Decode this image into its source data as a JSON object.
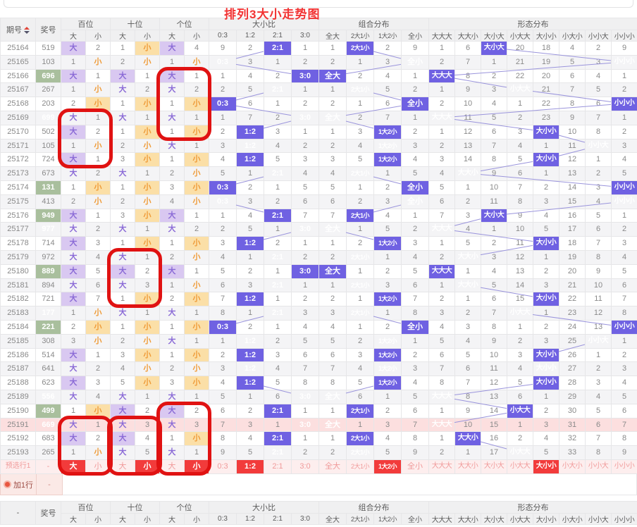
{
  "title": "排列3大小走势图",
  "columns": {
    "period": "期号",
    "prize": "奖号",
    "groups": [
      {
        "label": "百位",
        "subs": [
          "大",
          "小"
        ]
      },
      {
        "label": "十位",
        "subs": [
          "大",
          "小"
        ]
      },
      {
        "label": "个位",
        "subs": [
          "大",
          "小"
        ]
      },
      {
        "label": "大小比",
        "subs": [
          "0:3",
          "1:2",
          "2:1",
          "3:0"
        ]
      },
      {
        "label": "组合分布",
        "subs": [
          "全大",
          "2大1小",
          "1大2小",
          "全小"
        ]
      },
      {
        "label": "形态分布",
        "subs": [
          "大大大",
          "大大小",
          "大小大",
          "小大大",
          "大小小",
          "小大小",
          "小小大",
          "小小小"
        ]
      }
    ]
  },
  "rows": [
    {
      "period": "25164",
      "prize": "519",
      "prize_hl": false,
      "pink": false,
      "cells": [
        "大",
        "2",
        "1",
        "小",
        "大",
        "4",
        "9",
        "2",
        "2:1",
        "1",
        "1",
        "2大1小",
        "2",
        "9",
        "1",
        "6",
        "大小大",
        "20",
        "18",
        "4",
        "2",
        "9"
      ]
    },
    {
      "period": "25165",
      "prize": "103",
      "prize_hl": false,
      "pink": false,
      "cells": [
        "1",
        "小",
        "2",
        "小",
        "1",
        "小",
        "0:3",
        "3",
        "1",
        "2",
        "2",
        "1",
        "3",
        "全小",
        "2",
        "7",
        "1",
        "21",
        "19",
        "5",
        "3",
        "小小小"
      ]
    },
    {
      "period": "25166",
      "prize": "696",
      "prize_hl": true,
      "pink": false,
      "cells": [
        "大",
        "1",
        "大",
        "1",
        "大",
        "1",
        "1",
        "4",
        "2",
        "3:0",
        "全大",
        "2",
        "4",
        "1",
        "大大大",
        "8",
        "2",
        "22",
        "20",
        "6",
        "4",
        "1"
      ]
    },
    {
      "period": "25167",
      "prize": "267",
      "prize_hl": false,
      "pink": false,
      "cells": [
        "1",
        "小",
        "大",
        "2",
        "大",
        "2",
        "2",
        "5",
        "2:1",
        "1",
        "1",
        "2大1小",
        "5",
        "2",
        "1",
        "9",
        "3",
        "小大大",
        "21",
        "7",
        "5",
        "2"
      ]
    },
    {
      "period": "25168",
      "prize": "203",
      "prize_hl": false,
      "pink": false,
      "cells": [
        "2",
        "小",
        "1",
        "小",
        "1",
        "小",
        "0:3",
        "6",
        "1",
        "2",
        "2",
        "1",
        "6",
        "全小",
        "2",
        "10",
        "4",
        "1",
        "22",
        "8",
        "6",
        "小小小"
      ]
    },
    {
      "period": "25169",
      "prize": "699",
      "prize_hl": true,
      "pink": false,
      "cells": [
        "大",
        "1",
        "大",
        "1",
        "大",
        "1",
        "1",
        "7",
        "2",
        "3:0",
        "全大",
        "2",
        "7",
        "1",
        "大大大",
        "11",
        "5",
        "2",
        "23",
        "9",
        "7",
        "1"
      ]
    },
    {
      "period": "25170",
      "prize": "502",
      "prize_hl": false,
      "pink": false,
      "cells": [
        "大",
        "2",
        "1",
        "小",
        "1",
        "小",
        "2",
        "1:2",
        "3",
        "1",
        "1",
        "3",
        "1大2小",
        "2",
        "1",
        "12",
        "6",
        "3",
        "大小小",
        "10",
        "8",
        "2"
      ]
    },
    {
      "period": "25171",
      "prize": "105",
      "prize_hl": false,
      "pink": false,
      "cells": [
        "1",
        "小",
        "2",
        "小",
        "大",
        "1",
        "3",
        "1:2",
        "4",
        "2",
        "2",
        "4",
        "1大2小",
        "3",
        "2",
        "13",
        "7",
        "4",
        "1",
        "11",
        "小小大",
        "3"
      ]
    },
    {
      "period": "25172",
      "prize": "724",
      "prize_hl": false,
      "pink": false,
      "cells": [
        "大",
        "1",
        "3",
        "小",
        "1",
        "小",
        "4",
        "1:2",
        "5",
        "3",
        "3",
        "5",
        "1大2小",
        "4",
        "3",
        "14",
        "8",
        "5",
        "大小小",
        "12",
        "1",
        "4"
      ]
    },
    {
      "period": "25173",
      "prize": "673",
      "prize_hl": false,
      "pink": false,
      "cells": [
        "大",
        "2",
        "大",
        "1",
        "2",
        "小",
        "5",
        "1",
        "2:1",
        "4",
        "4",
        "2大1小",
        "1",
        "5",
        "4",
        "大大小",
        "9",
        "6",
        "1",
        "13",
        "2",
        "5"
      ]
    },
    {
      "period": "25174",
      "prize": "131",
      "prize_hl": true,
      "pink": false,
      "cells": [
        "1",
        "小",
        "1",
        "小",
        "3",
        "小",
        "0:3",
        "2",
        "1",
        "5",
        "5",
        "1",
        "2",
        "全小",
        "5",
        "1",
        "10",
        "7",
        "2",
        "14",
        "3",
        "小小小"
      ]
    },
    {
      "period": "25175",
      "prize": "413",
      "prize_hl": false,
      "pink": false,
      "cells": [
        "2",
        "小",
        "2",
        "小",
        "4",
        "小",
        "0:3",
        "3",
        "2",
        "6",
        "6",
        "2",
        "3",
        "全小",
        "6",
        "2",
        "11",
        "8",
        "3",
        "15",
        "4",
        "小小小"
      ]
    },
    {
      "period": "25176",
      "prize": "949",
      "prize_hl": true,
      "pink": false,
      "cells": [
        "大",
        "1",
        "3",
        "小",
        "大",
        "1",
        "1",
        "4",
        "2:1",
        "7",
        "7",
        "2大1小",
        "4",
        "1",
        "7",
        "3",
        "大小大",
        "9",
        "4",
        "16",
        "5",
        "1"
      ]
    },
    {
      "period": "25177",
      "prize": "977",
      "prize_hl": true,
      "pink": false,
      "cells": [
        "大",
        "2",
        "大",
        "1",
        "大",
        "2",
        "2",
        "5",
        "1",
        "3:0",
        "全大",
        "1",
        "5",
        "2",
        "大大大",
        "4",
        "1",
        "10",
        "5",
        "17",
        "6",
        "2"
      ]
    },
    {
      "period": "25178",
      "prize": "714",
      "prize_hl": false,
      "pink": false,
      "cells": [
        "大",
        "3",
        "1",
        "小",
        "1",
        "小",
        "3",
        "1:2",
        "2",
        "1",
        "1",
        "2",
        "1大2小",
        "3",
        "1",
        "5",
        "2",
        "11",
        "大小小",
        "18",
        "7",
        "3"
      ]
    },
    {
      "period": "25179",
      "prize": "972",
      "prize_hl": false,
      "pink": false,
      "cells": [
        "大",
        "4",
        "大",
        "1",
        "2",
        "小",
        "4",
        "1",
        "2:1",
        "2",
        "2",
        "2大1小",
        "1",
        "4",
        "2",
        "大大小",
        "3",
        "12",
        "1",
        "19",
        "8",
        "4"
      ]
    },
    {
      "period": "25180",
      "prize": "889",
      "prize_hl": true,
      "pink": false,
      "cells": [
        "大",
        "5",
        "大",
        "2",
        "大",
        "1",
        "5",
        "2",
        "1",
        "3:0",
        "全大",
        "1",
        "2",
        "5",
        "大大大",
        "1",
        "4",
        "13",
        "2",
        "20",
        "9",
        "5"
      ]
    },
    {
      "period": "25181",
      "prize": "894",
      "prize_hl": false,
      "pink": false,
      "cells": [
        "大",
        "6",
        "大",
        "3",
        "1",
        "小",
        "6",
        "3",
        "2:1",
        "1",
        "1",
        "2大1小",
        "3",
        "6",
        "1",
        "大大小",
        "5",
        "14",
        "3",
        "21",
        "10",
        "6"
      ]
    },
    {
      "period": "25182",
      "prize": "721",
      "prize_hl": false,
      "pink": false,
      "cells": [
        "大",
        "7",
        "1",
        "小",
        "2",
        "小",
        "7",
        "1:2",
        "1",
        "2",
        "2",
        "1",
        "1大2小",
        "7",
        "2",
        "1",
        "6",
        "15",
        "大小小",
        "22",
        "11",
        "7"
      ]
    },
    {
      "period": "25183",
      "prize": "177",
      "prize_hl": true,
      "pink": false,
      "cells": [
        "1",
        "小",
        "大",
        "1",
        "大",
        "1",
        "8",
        "1",
        "2:1",
        "3",
        "3",
        "2大1小",
        "1",
        "8",
        "3",
        "2",
        "7",
        "小大大",
        "1",
        "23",
        "12",
        "8"
      ]
    },
    {
      "period": "25184",
      "prize": "221",
      "prize_hl": true,
      "pink": false,
      "cells": [
        "2",
        "小",
        "1",
        "小",
        "1",
        "小",
        "0:3",
        "2",
        "1",
        "4",
        "4",
        "1",
        "2",
        "全小",
        "4",
        "3",
        "8",
        "1",
        "2",
        "24",
        "13",
        "小小小"
      ]
    },
    {
      "period": "25185",
      "prize": "308",
      "prize_hl": false,
      "pink": false,
      "cells": [
        "3",
        "小",
        "2",
        "小",
        "大",
        "1",
        "1",
        "1:2",
        "2",
        "5",
        "5",
        "2",
        "1大2小",
        "1",
        "5",
        "4",
        "9",
        "2",
        "3",
        "25",
        "小小大",
        "1"
      ]
    },
    {
      "period": "25186",
      "prize": "514",
      "prize_hl": false,
      "pink": false,
      "cells": [
        "大",
        "1",
        "3",
        "小",
        "1",
        "小",
        "2",
        "1:2",
        "3",
        "6",
        "6",
        "3",
        "1大2小",
        "2",
        "6",
        "5",
        "10",
        "3",
        "大小小",
        "26",
        "1",
        "2"
      ]
    },
    {
      "period": "25187",
      "prize": "641",
      "prize_hl": false,
      "pink": false,
      "cells": [
        "大",
        "2",
        "4",
        "小",
        "2",
        "小",
        "3",
        "1:2",
        "4",
        "7",
        "7",
        "4",
        "1大2小",
        "3",
        "7",
        "6",
        "11",
        "4",
        "大小小",
        "27",
        "2",
        "3"
      ]
    },
    {
      "period": "25188",
      "prize": "623",
      "prize_hl": false,
      "pink": false,
      "cells": [
        "大",
        "3",
        "5",
        "小",
        "3",
        "小",
        "4",
        "1:2",
        "5",
        "8",
        "8",
        "5",
        "1大2小",
        "4",
        "8",
        "7",
        "12",
        "5",
        "大小小",
        "28",
        "3",
        "4"
      ]
    },
    {
      "period": "25189",
      "prize": "556",
      "prize_hl": true,
      "pink": false,
      "cells": [
        "大",
        "4",
        "大",
        "1",
        "大",
        "1",
        "5",
        "1",
        "6",
        "3:0",
        "全大",
        "6",
        "1",
        "5",
        "大大大",
        "8",
        "13",
        "6",
        "1",
        "29",
        "4",
        "5"
      ]
    },
    {
      "period": "25190",
      "prize": "499",
      "prize_hl": true,
      "pink": false,
      "cells": [
        "1",
        "小",
        "大",
        "2",
        "大",
        "2",
        "6",
        "2",
        "2:1",
        "1",
        "1",
        "2大1小",
        "2",
        "6",
        "1",
        "9",
        "14",
        "小大大",
        "2",
        "30",
        "5",
        "6"
      ]
    },
    {
      "period": "25191",
      "prize": "669",
      "prize_hl": false,
      "pink": true,
      "cells": [
        "大",
        "1",
        "大",
        "3",
        "大",
        "3",
        "7",
        "3",
        "1",
        "3:0",
        "全大",
        "1",
        "3",
        "7",
        "大大大",
        "10",
        "15",
        "1",
        "3",
        "31",
        "6",
        "7"
      ]
    },
    {
      "period": "25192",
      "prize": "683",
      "prize_hl": false,
      "pink": false,
      "cells": [
        "大",
        "2",
        "大",
        "4",
        "1",
        "小",
        "8",
        "4",
        "2:1",
        "1",
        "1",
        "2大1小",
        "4",
        "8",
        "1",
        "大大小",
        "16",
        "2",
        "4",
        "32",
        "7",
        "8"
      ]
    },
    {
      "period": "25193",
      "prize": "265",
      "prize_hl": false,
      "pink": false,
      "cells": [
        "1",
        "小",
        "大",
        "5",
        "大",
        "1",
        "9",
        "5",
        "2:1",
        "2",
        "2",
        "2大1小",
        "5",
        "9",
        "2",
        "1",
        "17",
        "小大大",
        "5",
        "33",
        "8",
        "9"
      ]
    }
  ],
  "preselect_row": {
    "label": "预选行1",
    "prize": "-",
    "cells": [
      "大",
      "小",
      "大",
      "小",
      "大",
      "小",
      "0:3",
      "1:2",
      "2:1",
      "3:0",
      "全大",
      "2大1小",
      "1大2小",
      "全小",
      "大大大",
      "大大小",
      "大小大",
      "小大大",
      "大小小",
      "小大小",
      "小小大",
      "小小小"
    ],
    "selected": [
      0,
      3,
      5,
      7,
      12,
      18
    ]
  },
  "add_row": {
    "label": "加1行",
    "prize": "-"
  },
  "footer": {
    "first_label": "-"
  },
  "annotations": [
    {
      "col_start": 4,
      "col_end": 5,
      "row_start": 2,
      "row_end": 6
    },
    {
      "col_start": 0,
      "col_end": 1,
      "row_start": 5,
      "row_end": 8
    },
    {
      "col_start": 2,
      "col_end": 3,
      "row_start": 15,
      "row_end": 18
    },
    {
      "col_start": 0,
      "col_end": 1,
      "row_start": 27,
      "row_end": "pre"
    },
    {
      "col_start": 2,
      "col_end": 3,
      "row_start": 27,
      "row_end": "pre"
    },
    {
      "col_start": 4,
      "col_end": 5,
      "row_start": 26,
      "row_end": "pre"
    }
  ],
  "colors": {
    "title_red": "#f23333",
    "big_bg": "#d9c8f1",
    "big_text": "#8a6ad6",
    "small_bg": "#fbdfa7",
    "small_text": "#ef9b38",
    "hit_bg": "#6f61e2",
    "prize_hit_bg": "#a9bf9d",
    "pink_row_bg": "#fcdfdf",
    "preselect_bg": "#fdeeee",
    "selected_bg": "#f23b3b",
    "annotation_red": "#e01212",
    "trend_line": "#9a94dc"
  }
}
